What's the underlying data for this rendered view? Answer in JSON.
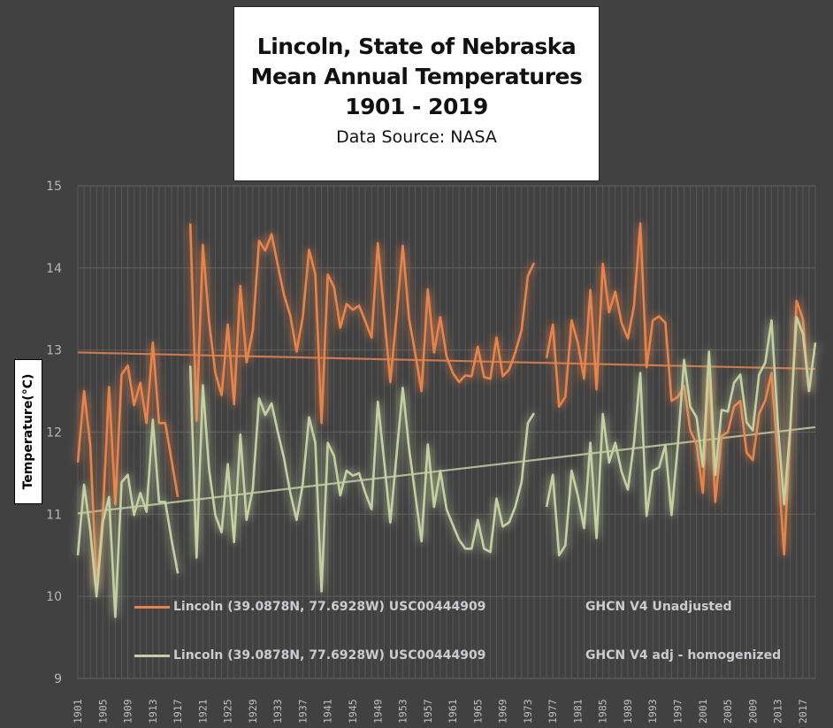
{
  "chart_data": {
    "type": "line",
    "title": [
      "Lincoln, State of Nebraska",
      "Mean Annual Temperatures",
      "1901 - 2019"
    ],
    "subtitle": "Data Source: NASA",
    "xlabel": "",
    "ylabel": "Temperature(°C)",
    "xlim": [
      1901,
      2019
    ],
    "ylim": [
      9,
      15
    ],
    "yticks": [
      9,
      10,
      11,
      12,
      13,
      14,
      15
    ],
    "xtick_labels": [
      "1901",
      "1905",
      "1909",
      "1913",
      "1917",
      "1921",
      "1925",
      "1929",
      "1933",
      "1937",
      "1941",
      "1945",
      "1949",
      "1953",
      "1957",
      "1961",
      "1965",
      "1969",
      "1973",
      "1977",
      "1981",
      "1985",
      "1989",
      "1993",
      "1997",
      "2001",
      "2005",
      "2009",
      "2013",
      "2017"
    ],
    "grid": true,
    "legend_position": "bottom",
    "series": [
      {
        "name": "Lincoln (39.0878N, 77.6928W) USC00444909",
        "source": "GHCN V4 Unadjusted",
        "color": "#e8834a",
        "x": [
          1901,
          1902,
          1903,
          1904,
          1905,
          1906,
          1907,
          1908,
          1909,
          1910,
          1911,
          1912,
          1913,
          1914,
          1915,
          1916,
          1917,
          1918,
          1919,
          1920,
          1921,
          1922,
          1923,
          1924,
          1925,
          1926,
          1927,
          1928,
          1929,
          1930,
          1931,
          1932,
          1933,
          1934,
          1935,
          1936,
          1937,
          1938,
          1939,
          1940,
          1941,
          1942,
          1943,
          1944,
          1945,
          1946,
          1947,
          1948,
          1949,
          1950,
          1951,
          1952,
          1953,
          1954,
          1955,
          1956,
          1957,
          1958,
          1959,
          1960,
          1961,
          1962,
          1963,
          1964,
          1965,
          1966,
          1967,
          1968,
          1969,
          1970,
          1971,
          1972,
          1973,
          1974,
          1975,
          1976,
          1977,
          1978,
          1979,
          1980,
          1981,
          1982,
          1983,
          1984,
          1985,
          1986,
          1987,
          1988,
          1989,
          1990,
          1991,
          1992,
          1993,
          1994,
          1995,
          1996,
          1997,
          1998,
          1999,
          2000,
          2001,
          2002,
          2003,
          2004,
          2005,
          2006,
          2007,
          2008,
          2009,
          2010,
          2011,
          2012,
          2013,
          2014,
          2015,
          2016,
          2017,
          2018
        ],
        "values": [
          11.63,
          12.5,
          11.84,
          10.12,
          11.0,
          12.55,
          11.12,
          12.7,
          12.81,
          12.33,
          12.6,
          12.11,
          13.09,
          12.11,
          12.11,
          11.66,
          11.21,
          null,
          14.54,
          12.14,
          14.28,
          13.35,
          12.72,
          12.45,
          13.31,
          12.34,
          13.78,
          12.85,
          13.24,
          14.33,
          14.21,
          14.41,
          14.03,
          13.67,
          13.42,
          12.98,
          13.4,
          14.22,
          13.92,
          12.11,
          13.92,
          13.76,
          13.27,
          13.56,
          13.49,
          13.54,
          13.35,
          13.15,
          14.3,
          13.45,
          12.61,
          13.42,
          14.27,
          13.38,
          12.95,
          12.5,
          13.74,
          12.97,
          13.4,
          12.92,
          12.72,
          12.61,
          12.69,
          12.68,
          13.04,
          12.67,
          12.65,
          13.15,
          12.68,
          12.76,
          12.97,
          13.24,
          13.9,
          14.06,
          null,
          12.9,
          13.31,
          12.31,
          12.43,
          13.36,
          13.09,
          12.65,
          13.73,
          12.52,
          14.05,
          13.46,
          13.71,
          13.33,
          13.14,
          13.54,
          14.54,
          12.79,
          13.36,
          13.41,
          13.33,
          12.38,
          12.43,
          12.56,
          12.02,
          11.85,
          11.26,
          12.77,
          11.15,
          11.95,
          12.0,
          12.31,
          12.38,
          11.75,
          11.66,
          12.22,
          12.39,
          12.72,
          11.66,
          10.51,
          12.02,
          13.6,
          13.38,
          12.49
        ],
        "trend": {
          "x": [
            1901,
            2019
          ],
          "y": [
            12.97,
            12.77
          ]
        }
      },
      {
        "name": "Lincoln (39.0878N, 77.6928W) USC00444909",
        "source": "GHCN V4 adj - homogenized",
        "color": "#c4d0a0",
        "x": [
          1901,
          1902,
          1903,
          1904,
          1905,
          1906,
          1907,
          1908,
          1909,
          1910,
          1911,
          1912,
          1913,
          1914,
          1915,
          1916,
          1917,
          1918,
          1919,
          1920,
          1921,
          1922,
          1923,
          1924,
          1925,
          1926,
          1927,
          1928,
          1929,
          1930,
          1931,
          1932,
          1933,
          1934,
          1935,
          1936,
          1937,
          1938,
          1939,
          1940,
          1941,
          1942,
          1943,
          1944,
          1945,
          1946,
          1947,
          1948,
          1949,
          1950,
          1951,
          1952,
          1953,
          1954,
          1955,
          1956,
          1957,
          1958,
          1959,
          1960,
          1961,
          1962,
          1963,
          1964,
          1965,
          1966,
          1967,
          1968,
          1969,
          1970,
          1971,
          1972,
          1973,
          1974,
          1975,
          1976,
          1977,
          1978,
          1979,
          1980,
          1981,
          1982,
          1983,
          1984,
          1985,
          1986,
          1987,
          1988,
          1989,
          1990,
          1991,
          1992,
          1993,
          1994,
          1995,
          1996,
          1997,
          1998,
          1999,
          2000,
          2001,
          2002,
          2003,
          2004,
          2005,
          2006,
          2007,
          2008,
          2009,
          2010,
          2011,
          2012,
          2013,
          2014,
          2015,
          2016,
          2017,
          2018,
          2019
        ],
        "values": [
          10.5,
          11.36,
          10.8,
          10.0,
          10.9,
          11.21,
          9.75,
          11.39,
          11.48,
          10.99,
          11.26,
          11.03,
          12.15,
          11.15,
          11.15,
          10.69,
          10.28,
          null,
          12.81,
          10.47,
          12.57,
          11.55,
          10.99,
          10.78,
          11.61,
          10.66,
          11.97,
          10.93,
          11.31,
          12.41,
          12.21,
          12.35,
          12.0,
          11.68,
          11.26,
          10.93,
          11.37,
          12.18,
          11.87,
          10.06,
          11.87,
          11.71,
          11.23,
          11.53,
          11.47,
          11.5,
          11.26,
          11.06,
          12.37,
          11.66,
          10.9,
          11.73,
          12.54,
          11.8,
          11.23,
          10.67,
          11.85,
          11.09,
          11.53,
          11.06,
          10.87,
          10.69,
          10.58,
          10.58,
          10.93,
          10.58,
          10.54,
          11.19,
          10.85,
          10.9,
          11.09,
          11.39,
          12.11,
          12.23,
          null,
          11.09,
          11.48,
          10.5,
          10.62,
          11.53,
          11.23,
          10.83,
          11.87,
          10.71,
          12.22,
          11.63,
          11.87,
          11.52,
          11.3,
          11.87,
          12.72,
          10.98,
          11.53,
          11.57,
          11.84,
          10.99,
          11.84,
          12.88,
          12.31,
          12.18,
          11.58,
          12.98,
          11.48,
          12.27,
          12.25,
          12.6,
          12.7,
          12.12,
          12.02,
          12.7,
          12.85,
          13.36,
          12.09,
          11.12,
          12.06,
          13.4,
          13.2,
          12.5,
          13.09
        ],
        "trend": {
          "x": [
            1901,
            2019
          ],
          "y": [
            11.01,
            12.06
          ]
        }
      }
    ]
  },
  "legend": [
    {
      "label": "Lincoln (39.0878N, 77.6928W) USC00444909",
      "source": "GHCN V4 Unadjusted",
      "color": "#e8834a"
    },
    {
      "label": "Lincoln (39.0878N, 77.6928W) USC00444909",
      "source": "GHCN V4 adj - homogenized",
      "color": "#c4d0a0"
    }
  ]
}
